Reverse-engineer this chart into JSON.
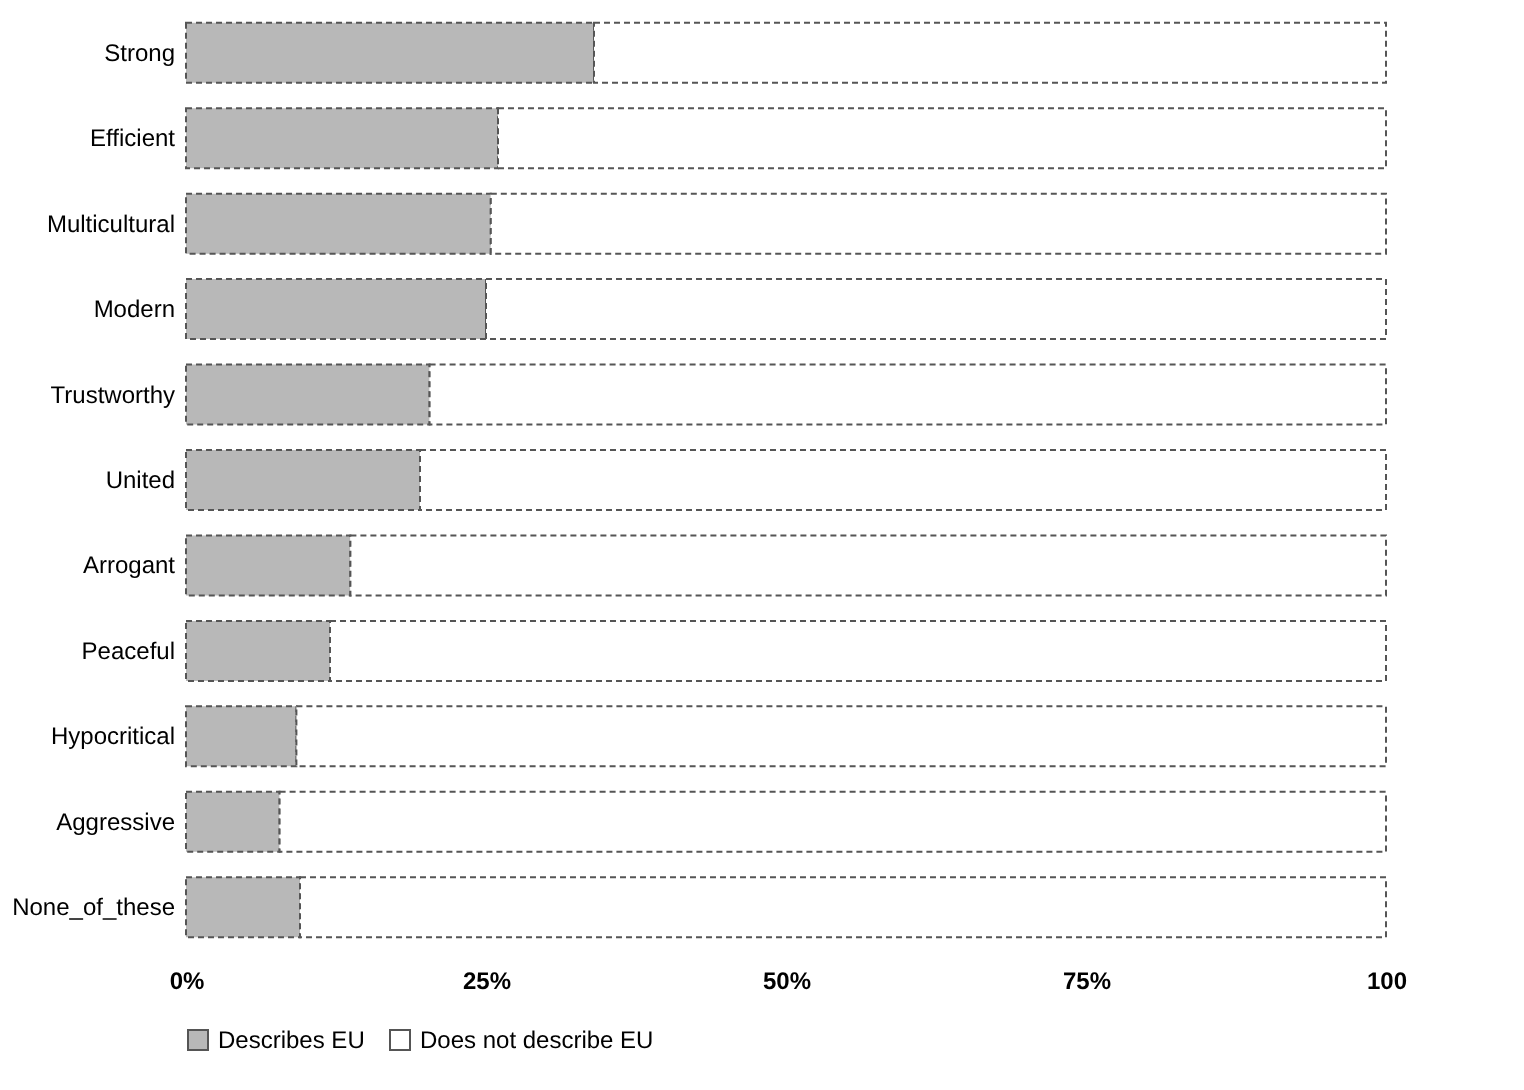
{
  "chart_data": {
    "type": "bar",
    "orientation": "horizontal",
    "stacked": true,
    "categories": [
      "Strong",
      "Efficient",
      "Multicultural",
      "Modern",
      "Trustworthy",
      "United",
      "Arrogant",
      "Peaceful",
      "Hypocritical",
      "Aggressive",
      "None_of_these"
    ],
    "series": [
      {
        "name": "Describes EU",
        "color": "#b8b8b8",
        "values": [
          34,
          26,
          25.4,
          25,
          20.3,
          19.5,
          13.7,
          12,
          9.2,
          7.8,
          9.5
        ]
      },
      {
        "name": "Does not describe EU",
        "color": "#ffffff",
        "values": [
          66,
          74,
          74.6,
          75,
          79.7,
          80.5,
          86.3,
          88,
          90.8,
          92.2,
          90.5
        ]
      }
    ],
    "xlim": [
      0,
      100
    ],
    "xticks": [
      {
        "value": 0,
        "label": "0%"
      },
      {
        "value": 25,
        "label": "25%"
      },
      {
        "value": 50,
        "label": "50%"
      },
      {
        "value": 75,
        "label": "75%"
      },
      {
        "value": 100,
        "label": "100"
      }
    ],
    "grid": false,
    "legend": "bottom"
  }
}
